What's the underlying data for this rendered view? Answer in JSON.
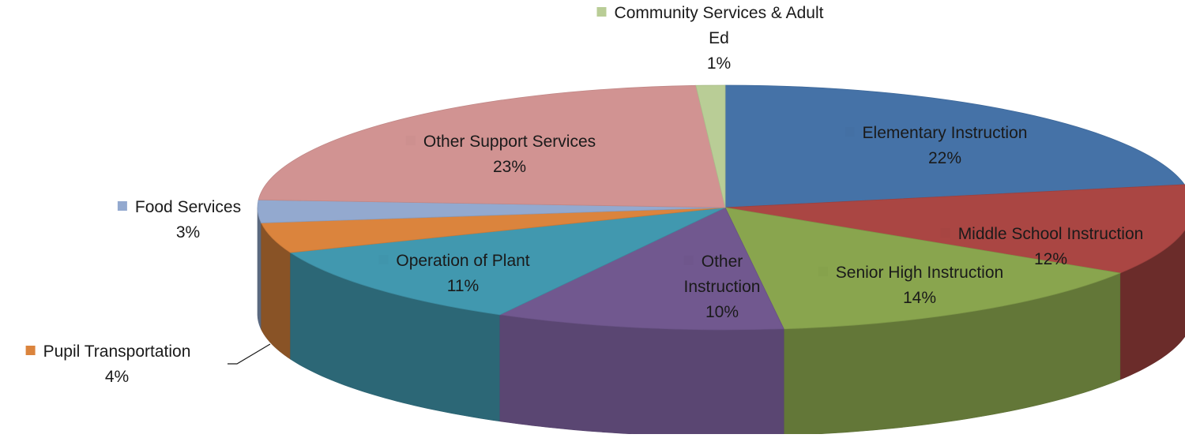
{
  "chart_data": {
    "type": "pie",
    "title": "",
    "three_d": true,
    "legend": "none",
    "slices": [
      {
        "label": "Elementary Instruction",
        "value": 22,
        "value_label": "22%",
        "color": "#4572A7"
      },
      {
        "label": "Middle School Instruction",
        "value": 12,
        "value_label": "12%",
        "color": "#AA4643"
      },
      {
        "label": "Senior High Instruction",
        "value": 14,
        "value_label": "14%",
        "color": "#89A54E"
      },
      {
        "label": "Other Instruction",
        "value": 10,
        "value_label": "10%",
        "color": "#71588F"
      },
      {
        "label": "Operation of Plant",
        "value": 11,
        "value_label": "11%",
        "color": "#4198AF"
      },
      {
        "label": "Pupil Transportation",
        "value": 4,
        "value_label": "4%",
        "color": "#DB843D"
      },
      {
        "label": "Food Services",
        "value": 3,
        "value_label": "3%",
        "color": "#93A9CF"
      },
      {
        "label": "Other Support Services",
        "value": 23,
        "value_label": "23%",
        "color": "#D19392"
      },
      {
        "label": "Community Services & Adult Ed",
        "value": 1,
        "value_label": "1%",
        "color": "#B9CD96"
      }
    ]
  }
}
